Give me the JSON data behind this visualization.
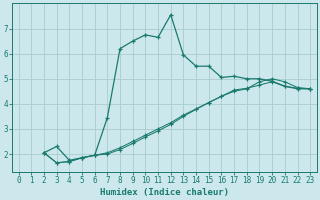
{
  "xlabel": "Humidex (Indice chaleur)",
  "bg_color": "#cce8ec",
  "line_color": "#1a7a6e",
  "grid_color": "#aacccc",
  "xlim": [
    -0.5,
    23.5
  ],
  "ylim": [
    1.3,
    8.0
  ],
  "xticks": [
    0,
    1,
    2,
    3,
    4,
    5,
    6,
    7,
    8,
    9,
    10,
    11,
    12,
    13,
    14,
    15,
    16,
    17,
    18,
    19,
    20,
    21,
    22,
    23
  ],
  "yticks": [
    2,
    3,
    4,
    5,
    6,
    7
  ],
  "line1_x": [
    2,
    3,
    4,
    5,
    6,
    7,
    8,
    9,
    10,
    11,
    12,
    13,
    14,
    15,
    16,
    17,
    18,
    19,
    20,
    21,
    22,
    23
  ],
  "line1_y": [
    2.05,
    2.3,
    1.75,
    1.85,
    1.95,
    3.45,
    6.2,
    6.5,
    6.75,
    6.65,
    7.55,
    5.95,
    5.5,
    5.5,
    5.05,
    5.1,
    5.0,
    5.0,
    4.9,
    4.7,
    4.6,
    4.6
  ],
  "line4_x": [
    5,
    6,
    23
  ],
  "line4_y": [
    1.85,
    1.95,
    4.75
  ],
  "line2b_x": [
    2,
    3,
    4,
    5,
    6,
    7,
    8,
    9,
    10,
    11,
    12,
    13,
    14,
    15,
    16,
    17,
    18,
    19,
    20,
    21,
    22,
    23
  ],
  "line2b_y": [
    2.05,
    1.65,
    1.7,
    1.85,
    1.95,
    2.05,
    2.25,
    2.5,
    2.75,
    3.0,
    3.25,
    3.55,
    3.8,
    4.05,
    4.3,
    4.55,
    4.62,
    4.75,
    4.88,
    4.7,
    4.62,
    4.6
  ],
  "line3b_x": [
    2,
    3,
    4,
    5,
    6,
    7,
    8,
    9,
    10,
    11,
    12,
    13,
    14,
    15,
    16,
    17,
    18,
    19,
    20,
    21,
    22,
    23
  ],
  "line3b_y": [
    2.05,
    1.65,
    1.7,
    1.85,
    1.95,
    2.0,
    2.18,
    2.42,
    2.68,
    2.92,
    3.18,
    3.5,
    3.78,
    4.05,
    4.3,
    4.5,
    4.6,
    4.88,
    5.0,
    4.88,
    4.65,
    4.6
  ]
}
